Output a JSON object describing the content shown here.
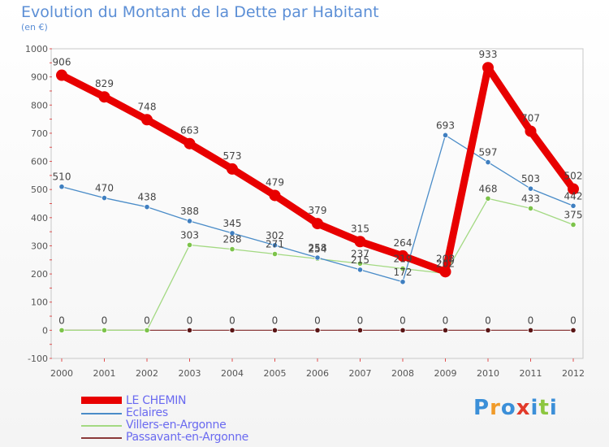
{
  "title": "Evolution du Montant de la Dette par Habitant",
  "subtitle": "(en €)",
  "brand": {
    "letters": [
      "P",
      "r",
      "o",
      "x",
      "i",
      "t",
      "i"
    ],
    "colors": [
      "#3b8fd8",
      "#f09b2a",
      "#3b8fd8",
      "#e23a2a",
      "#3b8fd8",
      "#8cc63f",
      "#3b8fd8"
    ]
  },
  "chart_data": {
    "type": "line",
    "categories": [
      "2000",
      "2001",
      "2002",
      "2003",
      "2004",
      "2005",
      "2006",
      "2007",
      "2008",
      "2009",
      "2010",
      "2011",
      "2012"
    ],
    "ylim": [
      -100,
      1000
    ],
    "yticks": [
      "-100",
      "0",
      "100",
      "200",
      "300",
      "400",
      "500",
      "600",
      "700",
      "800",
      "900",
      "1000"
    ],
    "grid": false,
    "legend_position": "bottom-left",
    "series": [
      {
        "name": "LE CHEMIN",
        "color": "#e80000",
        "emphasis": true,
        "values": [
          906,
          829,
          748,
          663,
          573,
          479,
          379,
          315,
          264,
          208,
          933,
          707,
          502
        ],
        "labels": [
          "906",
          "829",
          "748",
          "663",
          "573",
          "479",
          "379",
          "315",
          "264",
          "208",
          "933",
          "707",
          "502"
        ]
      },
      {
        "name": "Eclaires",
        "color": "#4a8cc8",
        "marker": "#3f7fc0",
        "values": [
          510,
          470,
          438,
          388,
          345,
          302,
          258,
          215,
          172,
          693,
          597,
          503,
          442
        ],
        "labels": [
          "510",
          "470",
          "438",
          "388",
          "345",
          "302",
          "258",
          "215",
          "172",
          "693",
          "597",
          "503",
          "442"
        ]
      },
      {
        "name": "Villers-en-Argonne",
        "color": "#a3d982",
        "marker": "#7cc34a",
        "values": [
          0,
          0,
          0,
          303,
          288,
          271,
          254,
          237,
          219,
          202,
          468,
          433,
          375
        ],
        "labels": [
          "",
          "",
          "",
          "303",
          "288",
          "271",
          "254",
          "237",
          "219",
          "202",
          "468",
          "433",
          "375"
        ]
      },
      {
        "name": "Passavant-en-Argonne",
        "color": "#8b3a3a",
        "marker": "#5a1515",
        "values": [
          0,
          0,
          0,
          0,
          0,
          0,
          0,
          0,
          0,
          0,
          0,
          0,
          0
        ],
        "labels": [
          "0",
          "0",
          "0",
          "0",
          "0",
          "0",
          "0",
          "0",
          "0",
          "0",
          "0",
          "0",
          "0"
        ]
      }
    ]
  }
}
